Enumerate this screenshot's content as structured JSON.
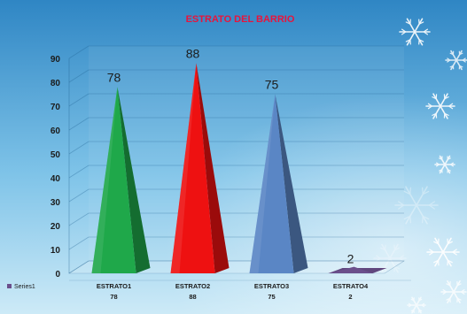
{
  "chart_data": {
    "type": "bar",
    "shape": "3d-pyramid",
    "title": "ESTRATO DEL BARRIO",
    "categories": [
      "ESTRATO1",
      "ESTRATO2",
      "ESTRATO3",
      "ESTRATO4"
    ],
    "series": [
      {
        "name": "Series1",
        "values": [
          78,
          88,
          75,
          2
        ]
      }
    ],
    "data_labels": [
      "78",
      "88",
      "75",
      "2"
    ],
    "ylim": [
      0,
      90
    ],
    "yticks": [
      0,
      10,
      20,
      30,
      40,
      50,
      60,
      70,
      80,
      90
    ],
    "xlabel": "",
    "ylabel": "",
    "grid": true,
    "legend_placement": "bottom-left",
    "data_table": true,
    "colors": {
      "bars": [
        "#1fa84a",
        "#ee1111",
        "#5a86c5",
        "#6b4f8c"
      ],
      "title": "#e8143c",
      "background_top": "#2f86c4",
      "background_bottom": "#bfe3f5"
    }
  }
}
